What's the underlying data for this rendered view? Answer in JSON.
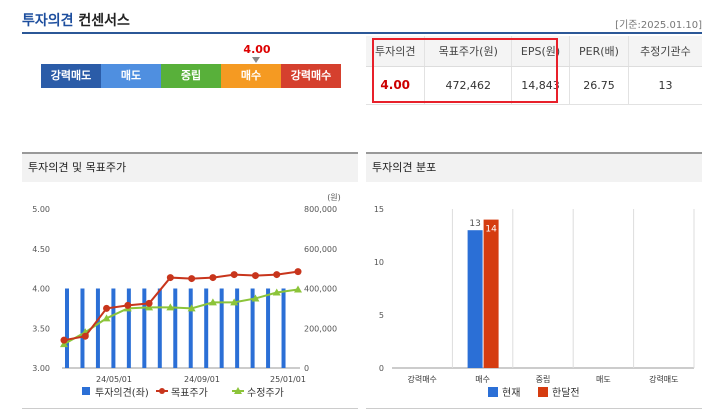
{
  "header": {
    "title_blue": "투자의견",
    "title_black": " 컨센서스",
    "basis": "[기준:2025.01.10]"
  },
  "gauge": {
    "labels": [
      "강력매도",
      "매도",
      "중립",
      "매수",
      "강력매수"
    ],
    "current_value": "4.00",
    "current_label": "매수"
  },
  "consensus": {
    "headers": [
      "투자의견",
      "목표주가(원)",
      "EPS(원)",
      "PER(배)",
      "추정기관수"
    ],
    "values": [
      "4.00",
      "472,462",
      "14,843",
      "26.75",
      "13"
    ]
  },
  "panels": {
    "left_title": "투자의견 및 목표주가",
    "right_title": "투자의견 분포"
  },
  "chart_data": [
    {
      "type": "bar",
      "title": "투자의견 및 목표주가",
      "y_left_ticks": [
        "5.00",
        "4.50",
        "4.00",
        "3.50",
        "3.00"
      ],
      "y_right_ticks": [
        "800,000",
        "600,000",
        "400,000",
        "200,000",
        "0"
      ],
      "y_right_unit": "(원)",
      "x_ticks": [
        "24/05/01",
        "24/09/01",
        "25/01/01"
      ],
      "ylim_left": [
        3.0,
        5.0
      ],
      "ylim_right": [
        0,
        800000
      ],
      "series": [
        {
          "name": "투자의견(좌)",
          "kind": "bar",
          "color": "#2b6fd6",
          "values": [
            4,
            4,
            4,
            4,
            4,
            4,
            4,
            4,
            4,
            4,
            4,
            4,
            4,
            4,
            4
          ]
        },
        {
          "name": "목표주가",
          "kind": "line",
          "color": "#c8351c",
          "values": [
            140000,
            160000,
            300000,
            315000,
            325000,
            455000,
            450000,
            455000,
            470000,
            465000,
            470000,
            485000
          ]
        },
        {
          "name": "수정주가",
          "kind": "line",
          "color": "#8cc43a",
          "values": [
            120000,
            180000,
            250000,
            300000,
            305000,
            305000,
            300000,
            330000,
            330000,
            350000,
            380000,
            395000
          ]
        }
      ],
      "legend": [
        "투자의견(좌)",
        "목표주가",
        "수정주가"
      ]
    },
    {
      "type": "bar",
      "title": "투자의견 분포",
      "categories": [
        "강력매수",
        "매수",
        "중립",
        "매도",
        "강력매도"
      ],
      "y_ticks": [
        "15",
        "10",
        "5",
        "0"
      ],
      "ylim": [
        0,
        15
      ],
      "series": [
        {
          "name": "현재",
          "color": "#2b6fd6",
          "values": [
            0,
            13,
            0,
            0,
            0
          ]
        },
        {
          "name": "한달전",
          "color": "#d53c10",
          "values": [
            0,
            14,
            0,
            0,
            0
          ]
        }
      ],
      "labels": [
        "13",
        "14"
      ]
    }
  ]
}
